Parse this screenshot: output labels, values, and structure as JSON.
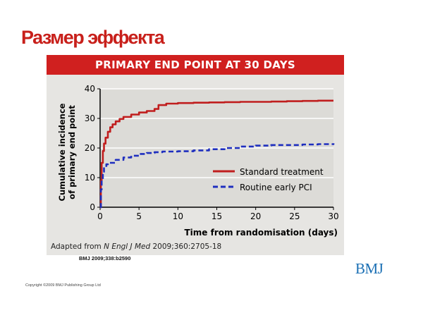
{
  "slide": {
    "title": "Размер эффекта",
    "citation": "BMJ 2009;338:b2590",
    "logo": "BMJ",
    "copyright": "Copyright ©2009 BMJ Publishing Group Ltd"
  },
  "figure": {
    "source_prefix": "Adapted from ",
    "source_journal": "N Engl J Med",
    "source_suffix": " 2009;360:2705-18"
  },
  "colors": {
    "title": "#c8201b",
    "banner": "#d0201f",
    "standard": "#c01e1e",
    "routine": "#1f2fbf",
    "logo": "#1a6fb4"
  },
  "chart_data": {
    "type": "line",
    "title": "PRIMARY END POINT AT 30 DAYS",
    "xlabel": "Time from randomisation (days)",
    "ylabel": [
      "Cumulative incidence",
      "of primary end point"
    ],
    "xlim": [
      0,
      30
    ],
    "ylim": [
      0,
      40
    ],
    "xticks": [
      0,
      5,
      10,
      15,
      20,
      25,
      30
    ],
    "yticks": [
      0,
      10,
      20,
      30,
      40
    ],
    "grid": "horizontal",
    "legend_position": "lower-right",
    "series": [
      {
        "name": "Standard treatment",
        "style": "solid",
        "x": [
          0,
          0.1,
          0.2,
          0.35,
          0.5,
          0.7,
          1.0,
          1.3,
          1.6,
          2.0,
          2.5,
          3.0,
          4.0,
          5.0,
          6.0,
          7.0,
          7.5,
          8.5,
          10,
          12,
          14,
          16,
          18,
          20,
          22,
          24,
          26,
          28,
          30
        ],
        "values": [
          0,
          9,
          15,
          19,
          21.5,
          23.5,
          25.5,
          27,
          28,
          29,
          29.8,
          30.5,
          31.3,
          32,
          32.5,
          33.2,
          34.5,
          35,
          35.2,
          35.3,
          35.4,
          35.5,
          35.6,
          35.6,
          35.7,
          35.8,
          35.9,
          36,
          36
        ]
      },
      {
        "name": "Routine early PCI",
        "style": "dashed",
        "x": [
          0,
          0.1,
          0.2,
          0.35,
          0.5,
          0.8,
          1.0,
          2.0,
          3.0,
          4.0,
          5.0,
          6.0,
          7.0,
          8.0,
          10,
          12,
          14,
          16,
          18,
          20,
          22,
          24,
          26,
          28,
          30
        ],
        "values": [
          0,
          6,
          9.5,
          12,
          13.5,
          14.5,
          15,
          16,
          16.8,
          17.4,
          18,
          18.3,
          18.6,
          18.8,
          18.9,
          19.2,
          19.6,
          20,
          20.5,
          20.8,
          21,
          21,
          21.2,
          21.3,
          21.6
        ]
      }
    ]
  }
}
